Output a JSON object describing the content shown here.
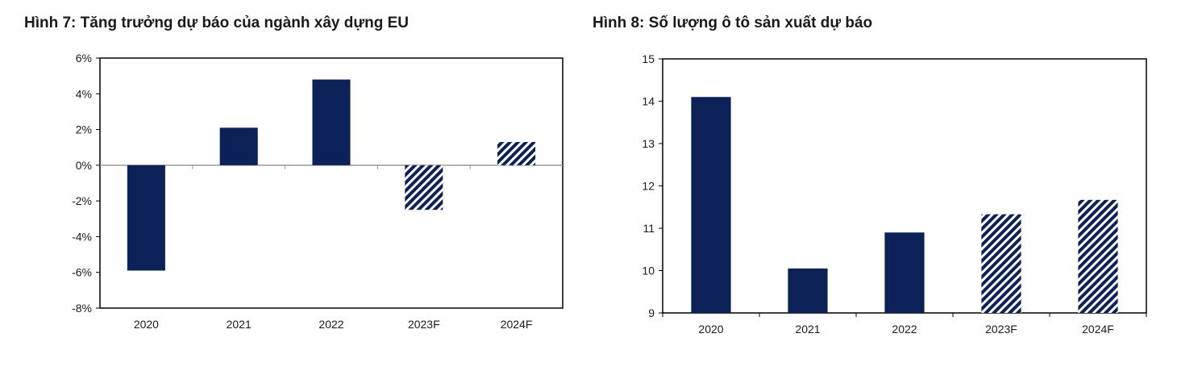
{
  "colors": {
    "bar_solid": "#0b2157",
    "hatch_light": "#ffffff",
    "axis": "#000000",
    "zero_line": "#999999"
  },
  "chart_data": [
    {
      "type": "bar",
      "title": "Hình 7: Tăng trưởng dự báo của ngành xây dựng EU",
      "xlabel": "",
      "ylabel": "",
      "categories": [
        "2020",
        "2021",
        "2022",
        "2023F",
        "2024F"
      ],
      "values": [
        -5.9,
        2.1,
        4.8,
        -2.5,
        1.3
      ],
      "forecast": [
        false,
        false,
        false,
        true,
        true
      ],
      "ylim": [
        -8,
        6
      ],
      "yticks": [
        6,
        4,
        2,
        0,
        -2,
        -4,
        -6,
        -8
      ],
      "ytick_labels": [
        "6%",
        "4%",
        "2%",
        "0%",
        "-2%",
        "-4%",
        "-6%",
        "-8%"
      ],
      "grid": false,
      "legend": "none"
    },
    {
      "type": "bar",
      "title": "Hình 8: Số lượng ô tô sản xuất dự báo",
      "xlabel": "",
      "ylabel": "",
      "categories": [
        "2020",
        "2021",
        "2022",
        "2023F",
        "2024F"
      ],
      "values": [
        14.1,
        10.05,
        10.9,
        11.33,
        11.67
      ],
      "forecast": [
        false,
        false,
        false,
        true,
        true
      ],
      "ylim": [
        9,
        15
      ],
      "yticks": [
        15,
        14,
        13,
        12,
        11,
        10,
        9
      ],
      "ytick_labels": [
        "15",
        "14",
        "13",
        "12",
        "11",
        "10",
        "9"
      ],
      "grid": false,
      "legend": "none"
    }
  ]
}
